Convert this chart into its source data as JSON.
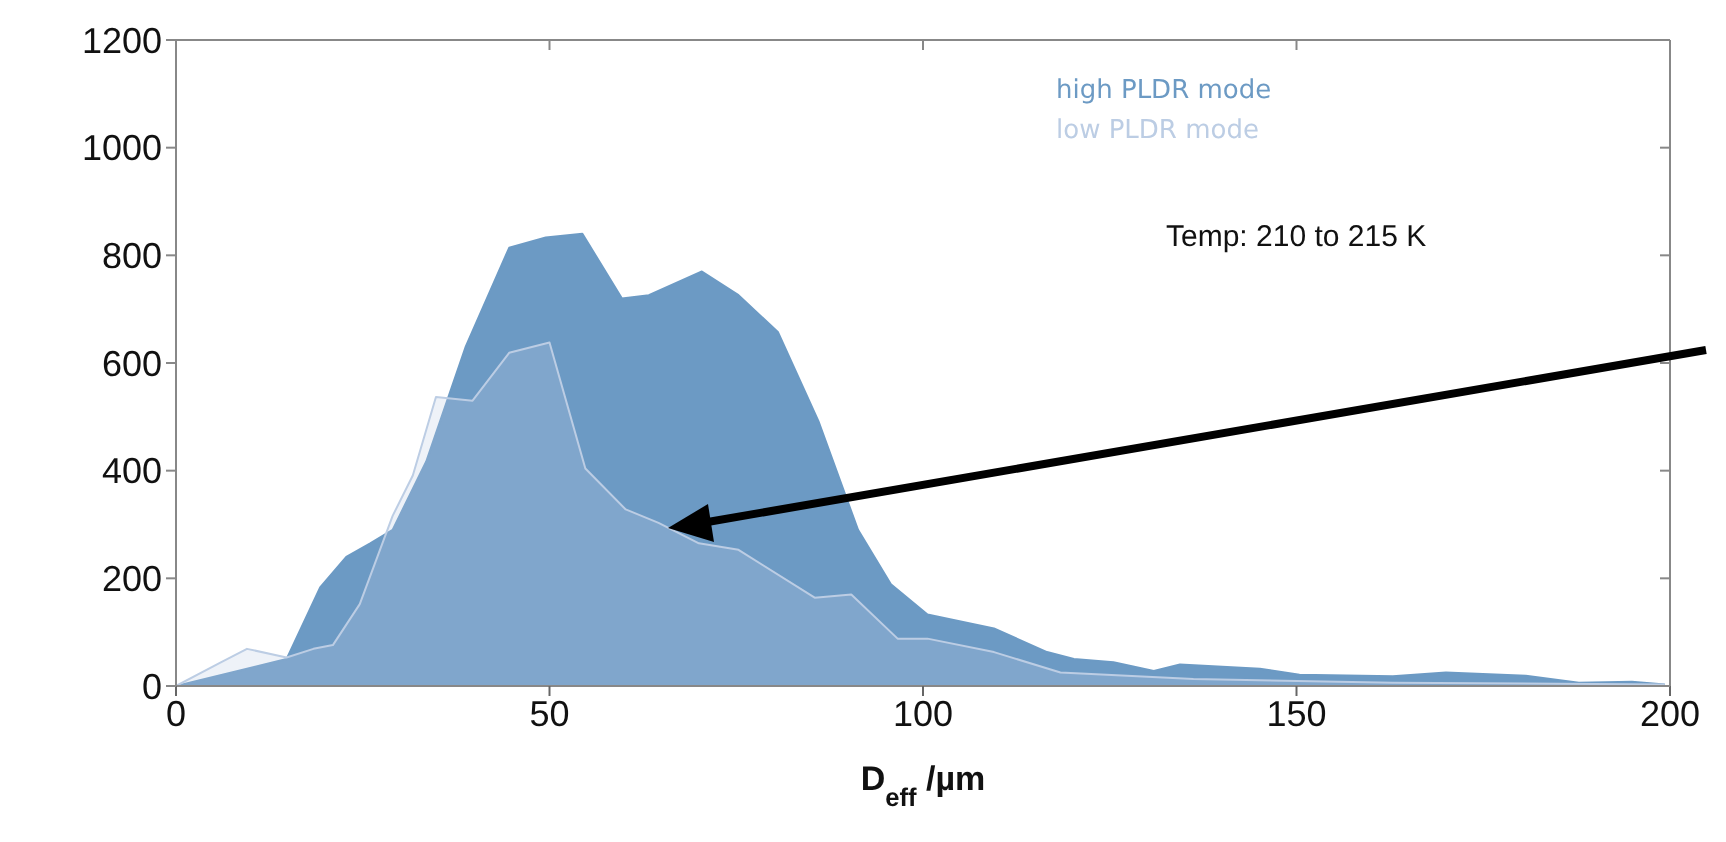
{
  "chart_data": {
    "type": "area",
    "xlabel": "D$_{eff}$ /µm",
    "xlim": [
      0,
      200
    ],
    "xticks": [
      0,
      50,
      100,
      150,
      200
    ],
    "ylim": [
      0,
      1200
    ],
    "yticks": [
      0,
      200,
      400,
      600,
      800,
      1000,
      1200
    ],
    "legend": "top right",
    "annotations": [
      "Temp: 210 to 215 K"
    ],
    "series": [
      {
        "name": "high PLDR mode",
        "color": "#6c9ac4",
        "x": [
          0,
          14.8,
          19.3,
          22.8,
          26,
          29,
          33.5,
          38.8,
          44.6,
          49.5,
          54.4,
          59.7,
          63.3,
          70.4,
          75.3,
          80.6,
          86,
          91.3,
          95.7,
          100.6,
          109.5,
          116.6,
          120.2,
          125.5,
          130.9,
          134.4,
          145.1,
          150.4,
          162.9,
          170,
          180.7,
          187.8,
          194.9,
          199.3
        ],
        "values": [
          0,
          50,
          183,
          240,
          265,
          290,
          417,
          631,
          814,
          833,
          840,
          720,
          726,
          770,
          726,
          657,
          492,
          290,
          189,
          133,
          107,
          63,
          50,
          44,
          28,
          40,
          32,
          21,
          18,
          25,
          19,
          6,
          8,
          3
        ]
      },
      {
        "name": "low PLDR mode",
        "color": "#bccde4",
        "x": [
          0,
          6,
          9.5,
          14.8,
          18.4,
          21,
          24.6,
          29,
          31.7,
          34.8,
          39.7,
          44.6,
          50,
          54.8,
          60.2,
          64.6,
          70,
          75.3,
          85.5,
          90.4,
          96.6,
          100.6,
          109.5,
          118.4,
          136.2,
          162.9,
          199.3
        ],
        "values": [
          0,
          44,
          69,
          53,
          69,
          76,
          152,
          316,
          391,
          537,
          530,
          619,
          638,
          404,
          328,
          303,
          265,
          253,
          164,
          170,
          88,
          88,
          63,
          25,
          13,
          6,
          3
        ]
      }
    ]
  }
}
